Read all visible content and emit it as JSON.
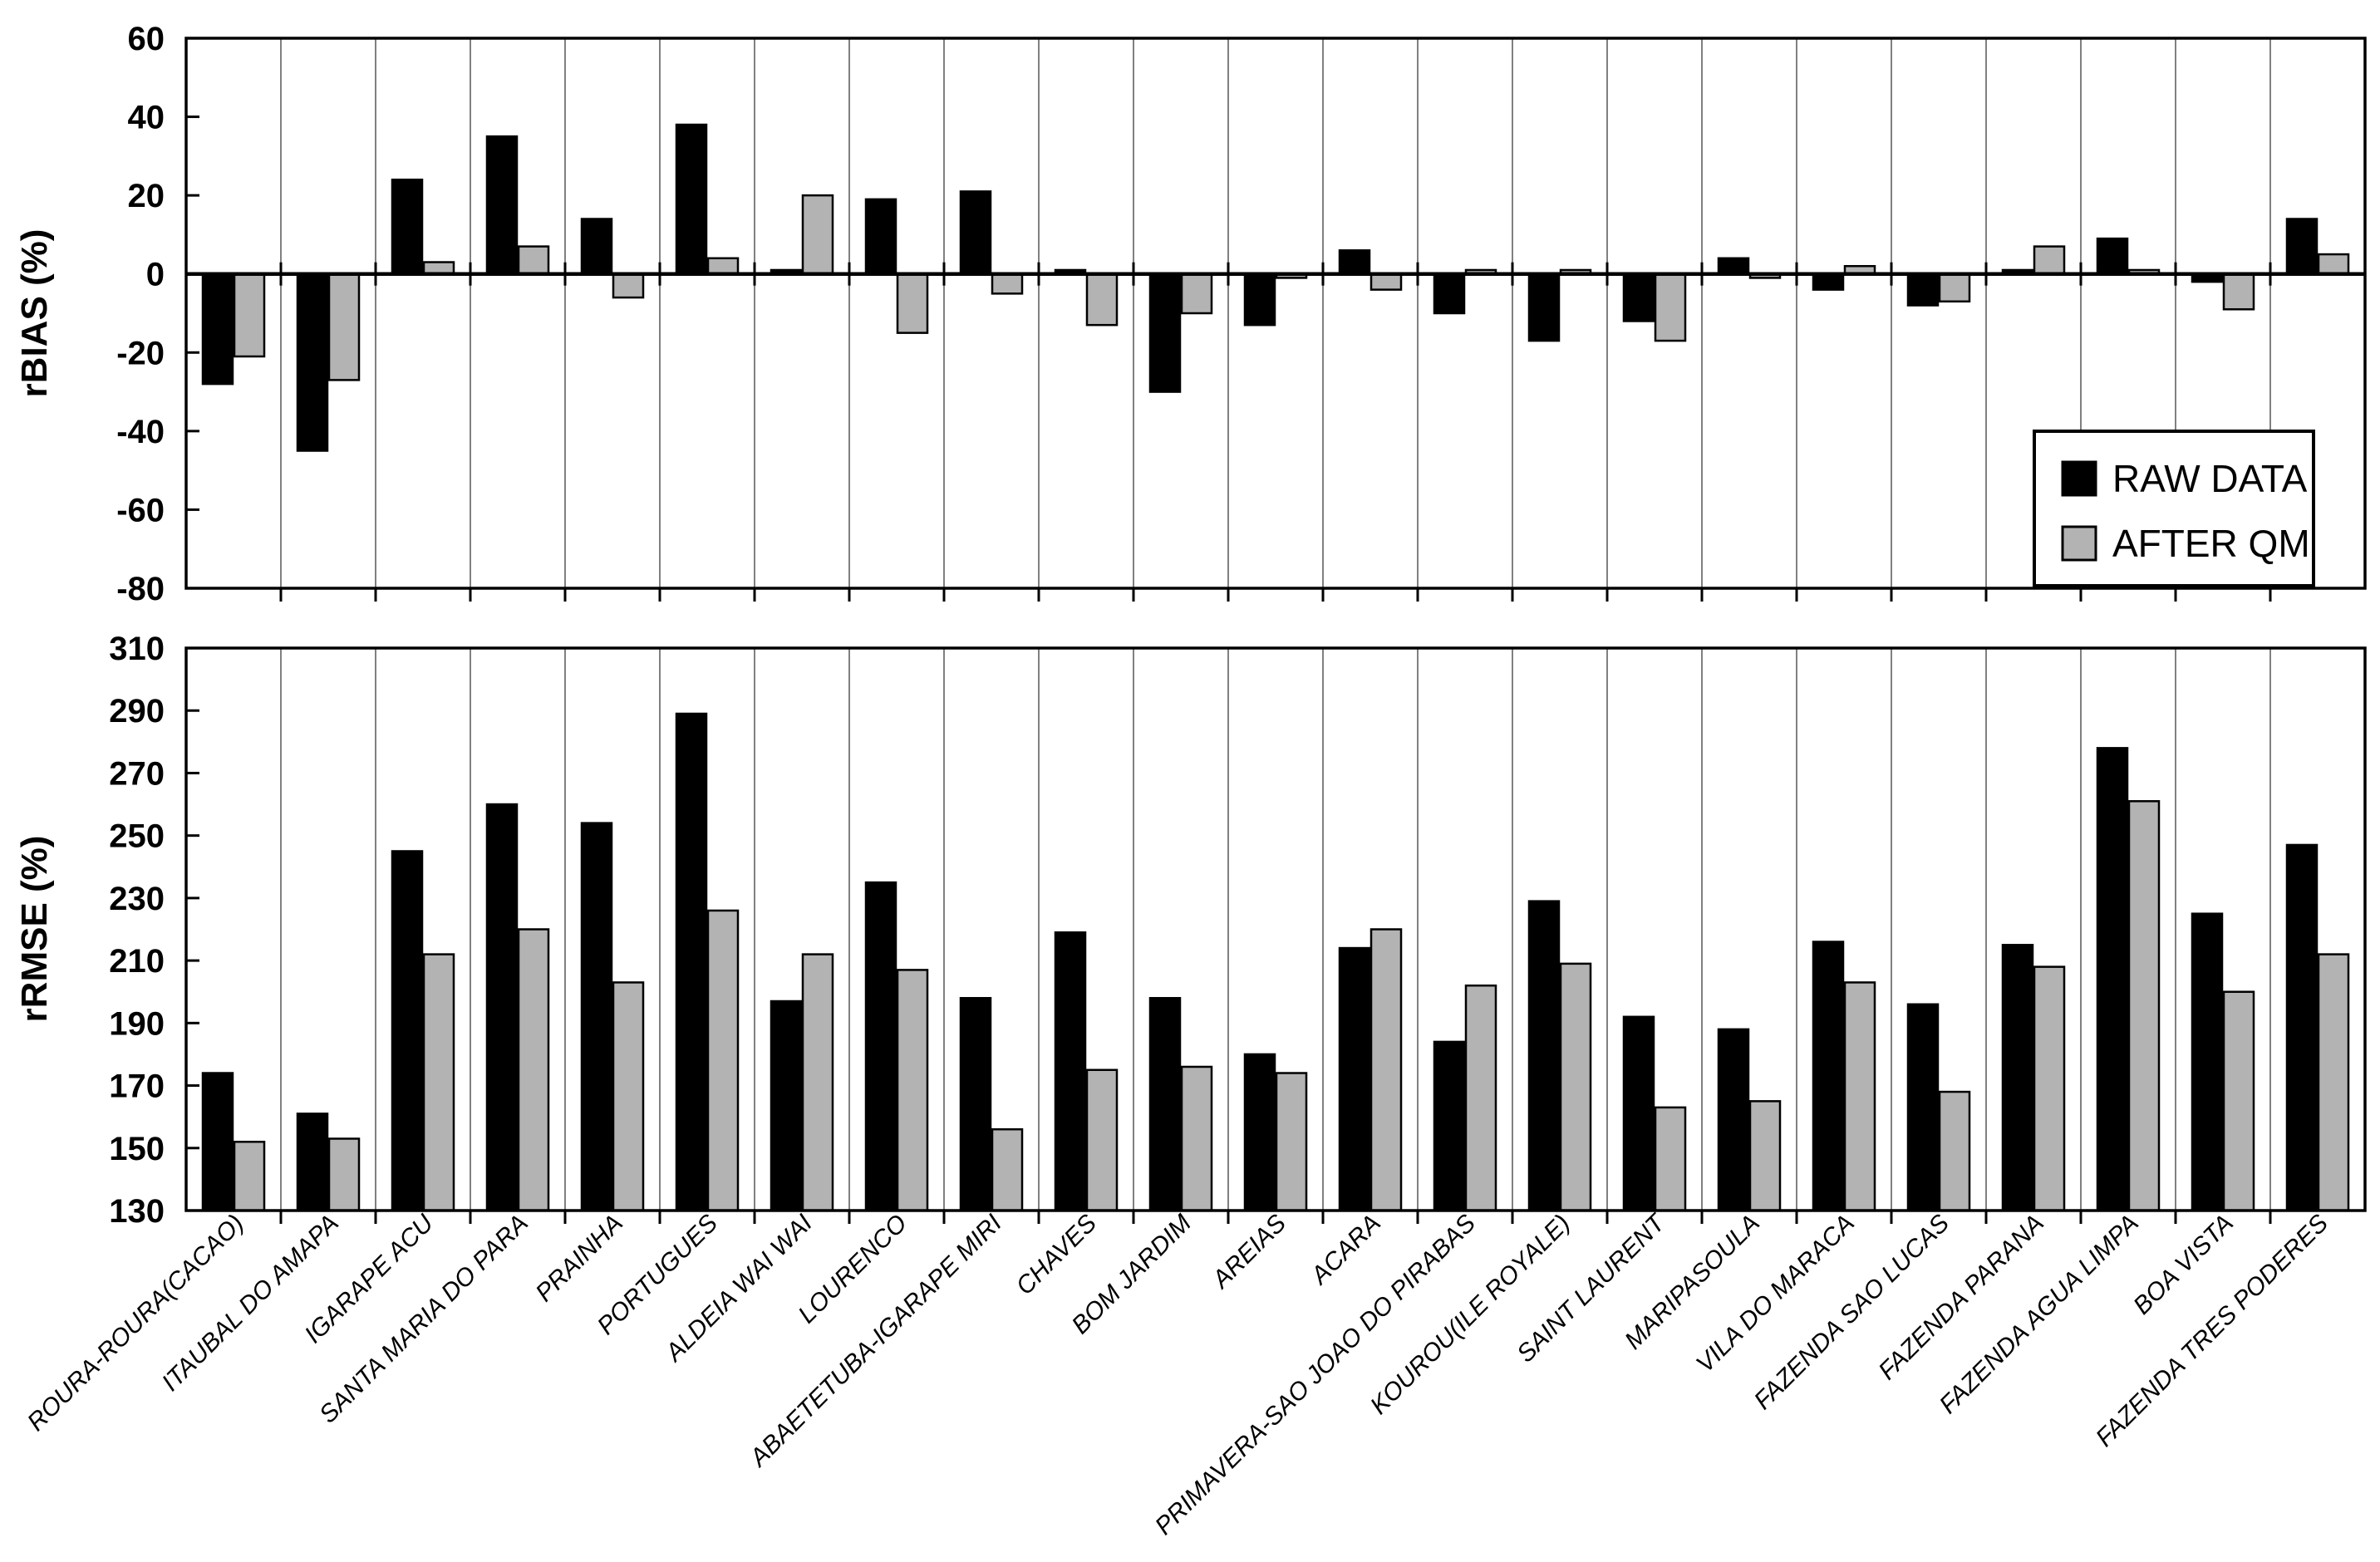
{
  "chart_data": [
    {
      "type": "bar",
      "panel": "rBIAS",
      "ylabel": "rBIAS (%)",
      "ylim": [
        -80,
        60
      ],
      "yticks": [
        60,
        40,
        20,
        0,
        -20,
        -40,
        -60,
        -80
      ],
      "grid": "vertical-only",
      "legend_position": "bottom-right-inside",
      "categories": [
        "ROURA-ROURA(CACAO)",
        "ITAUBAL DO AMAPA",
        "IGARAPE ACU",
        "SANTA MARIA DO PARA",
        "PRAINHA",
        "PORTUGUES",
        "ALDEIA WAI WAI",
        "LOURENCO",
        "ABAETETUBA-IGARAPE MIRI",
        "CHAVES",
        "BOM JARDIM",
        "AREIAS",
        "ACARA",
        "PRIMAVERA-SAO JOAO DO PIRABAS",
        "KOUROU(ILE ROYALE)",
        "SAINT LAURENT",
        "MARIPASOULA",
        "VILA DO MARACA",
        "FAZENDA SAO LUCAS",
        "FAZENDA PARANA",
        "FAZENDA AGUA LIMPA",
        "BOA VISTA",
        "FAZENDA TRES PODERES"
      ],
      "series": [
        {
          "name": "RAW DATA",
          "color": "#000000",
          "values": [
            -28,
            -45,
            24,
            35,
            14,
            38,
            1,
            19,
            21,
            1,
            -30,
            -13,
            6,
            -10,
            -17,
            -12,
            4,
            -4,
            -8,
            1,
            9,
            -2,
            14
          ]
        },
        {
          "name": "AFTER QM",
          "color": "#b3b3b3",
          "values": [
            -21,
            -27,
            3,
            7,
            -6,
            4,
            20,
            -15,
            -5,
            -13,
            -10,
            -1,
            -4,
            1,
            1,
            -17,
            -1,
            2,
            -7,
            7,
            1,
            -9,
            5
          ]
        }
      ]
    },
    {
      "type": "bar",
      "panel": "rRMSE",
      "ylabel": "rRMSE (%)",
      "ylim": [
        130,
        310
      ],
      "yticks": [
        310,
        290,
        270,
        250,
        230,
        210,
        190,
        170,
        150,
        130
      ],
      "grid": "vertical-only",
      "categories": [
        "ROURA-ROURA(CACAO)",
        "ITAUBAL DO AMAPA",
        "IGARAPE ACU",
        "SANTA MARIA DO PARA",
        "PRAINHA",
        "PORTUGUES",
        "ALDEIA WAI WAI",
        "LOURENCO",
        "ABAETETUBA-IGARAPE MIRI",
        "CHAVES",
        "BOM JARDIM",
        "AREIAS",
        "ACARA",
        "PRIMAVERA-SAO JOAO DO PIRABAS",
        "KOUROU(ILE ROYALE)",
        "SAINT LAURENT",
        "MARIPASOULA",
        "VILA DO MARACA",
        "FAZENDA SAO LUCAS",
        "FAZENDA PARANA",
        "FAZENDA AGUA LIMPA",
        "BOA VISTA",
        "FAZENDA TRES PODERES"
      ],
      "series": [
        {
          "name": "RAW DATA",
          "color": "#000000",
          "values": [
            174,
            161,
            245,
            260,
            254,
            289,
            197,
            235,
            198,
            219,
            198,
            180,
            214,
            184,
            229,
            192,
            188,
            216,
            196,
            215,
            278,
            225,
            247
          ]
        },
        {
          "name": "AFTER QM",
          "color": "#b3b3b3",
          "values": [
            152,
            153,
            212,
            220,
            203,
            226,
            212,
            207,
            156,
            175,
            176,
            174,
            220,
            202,
            209,
            163,
            165,
            203,
            168,
            208,
            261,
            200,
            212
          ]
        }
      ]
    }
  ],
  "legend": {
    "items": [
      {
        "label": "RAW DATA",
        "color": "#000000"
      },
      {
        "label": "AFTER QM",
        "color": "#b3b3b3"
      }
    ]
  },
  "style_colors": {
    "bar_outline": "#000000",
    "gridline": "#808080",
    "axis": "#000000",
    "background": "#ffffff"
  }
}
